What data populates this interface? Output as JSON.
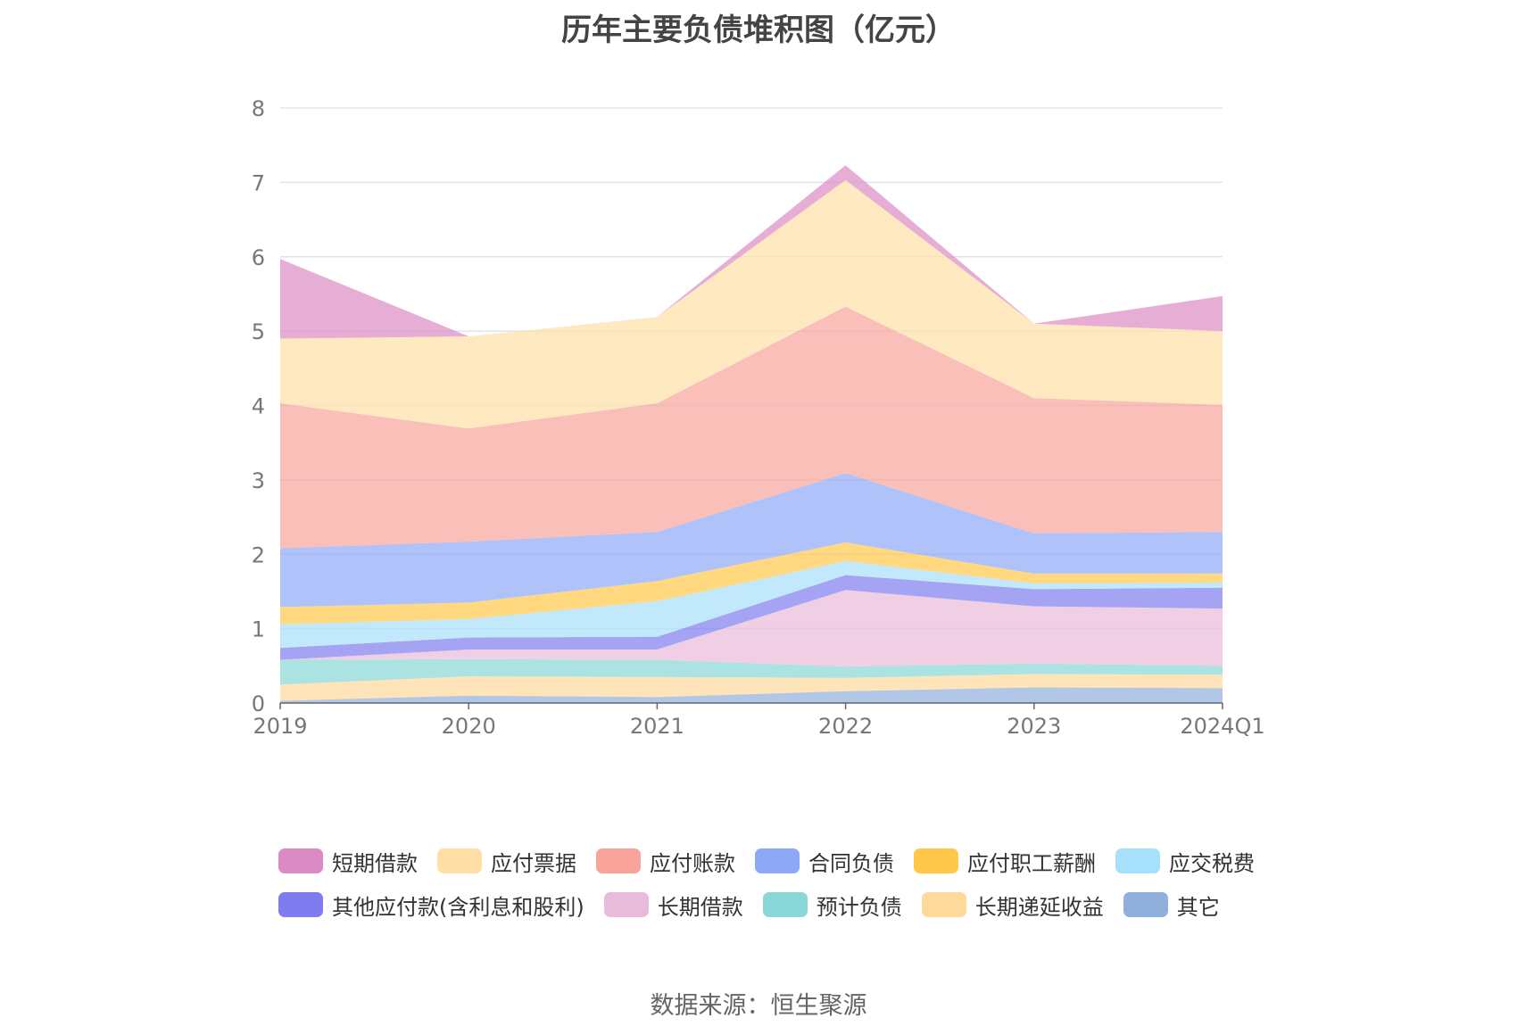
{
  "chart_data": {
    "type": "area",
    "stacked": true,
    "title": "历年主要负债堆积图（亿元）",
    "x": [
      "2019",
      "2020",
      "2021",
      "2022",
      "2023",
      "2024Q1"
    ],
    "yticks": [
      "0",
      "1",
      "2",
      "3",
      "4",
      "5",
      "6",
      "7",
      "8"
    ],
    "ylim": [
      0,
      8
    ],
    "grid": true,
    "legend_position": "bottom",
    "series": [
      {
        "name": "其它",
        "color": "#8fafdd",
        "values": [
          0.03,
          0.1,
          0.08,
          0.16,
          0.21,
          0.2
        ]
      },
      {
        "name": "长期递延收益",
        "color": "#ffd89b",
        "values": [
          0.22,
          0.26,
          0.27,
          0.18,
          0.18,
          0.18
        ]
      },
      {
        "name": "预计负债",
        "color": "#88d6d6",
        "values": [
          0.33,
          0.23,
          0.23,
          0.15,
          0.14,
          0.12
        ]
      },
      {
        "name": "长期借款",
        "color": "#e9bbda",
        "values": [
          0.0,
          0.13,
          0.14,
          1.03,
          0.77,
          0.77
        ]
      },
      {
        "name": "其他应付款(含利息和股利)",
        "color": "#7f7cf0",
        "values": [
          0.16,
          0.16,
          0.17,
          0.2,
          0.23,
          0.28
        ]
      },
      {
        "name": "应交税费",
        "color": "#a7e0fa",
        "values": [
          0.32,
          0.25,
          0.48,
          0.19,
          0.08,
          0.07
        ]
      },
      {
        "name": "应付职工薪酬",
        "color": "#ffc84a",
        "values": [
          0.23,
          0.22,
          0.27,
          0.25,
          0.13,
          0.12
        ]
      },
      {
        "name": "合同负债",
        "color": "#8ea8f8",
        "values": [
          0.79,
          0.82,
          0.66,
          0.93,
          0.54,
          0.56
        ]
      },
      {
        "name": "应付账款",
        "color": "#f9a49b",
        "values": [
          1.95,
          1.52,
          1.73,
          2.24,
          1.82,
          1.71
        ]
      },
      {
        "name": "应付票据",
        "color": "#ffdfa6",
        "values": [
          0.87,
          1.24,
          1.16,
          1.7,
          1.0,
          0.99
        ]
      },
      {
        "name": "短期借款",
        "color": "#dc8ac3",
        "values": [
          1.07,
          0.0,
          0.0,
          0.2,
          0.0,
          0.47
        ]
      }
    ]
  },
  "legend": {
    "rows": [
      [
        {
          "label": "短期借款",
          "color": "#dc8ac3"
        },
        {
          "label": "应付票据",
          "color": "#ffdfa6"
        },
        {
          "label": "应付账款",
          "color": "#f9a49b"
        },
        {
          "label": "合同负债",
          "color": "#8ea8f8"
        },
        {
          "label": "应付职工薪酬",
          "color": "#ffc84a"
        },
        {
          "label": "应交税费",
          "color": "#a7e0fa"
        }
      ],
      [
        {
          "label": "其他应付款(含利息和股利)",
          "color": "#7f7cf0"
        },
        {
          "label": "长期借款",
          "color": "#e9bbda"
        },
        {
          "label": "预计负债",
          "color": "#88d6d6"
        },
        {
          "label": "长期递延收益",
          "color": "#ffd89b"
        },
        {
          "label": "其它",
          "color": "#8fafdd"
        }
      ]
    ]
  },
  "source": "数据来源：恒生聚源"
}
